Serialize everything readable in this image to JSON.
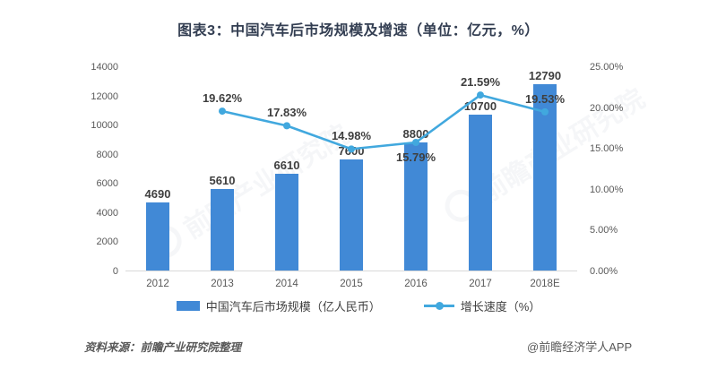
{
  "title": "图表3：中国汽车后市场规模及增速（单位：亿元，%）",
  "watermark_text": "前瞻产业研究院",
  "footer": {
    "source": "资料来源：前瞻产业研究院整理",
    "credit": "@前瞻经济学人APP"
  },
  "colors": {
    "bar": "#4189d6",
    "line": "#41a8de",
    "title_text": "#333e52",
    "axis_text": "#595959",
    "data_label_text": "#3f3f3f",
    "axis_line": "#d9d9d9"
  },
  "chart_data": {
    "type": "bar",
    "subtype": "bar+line combo",
    "title": "图表3：中国汽车后市场规模及增速（单位：亿元，%）",
    "categories": [
      "2012",
      "2013",
      "2014",
      "2015",
      "2016",
      "2017",
      "2018E"
    ],
    "series": [
      {
        "name": "中国汽车后市场规模（亿人民币）",
        "type": "bar",
        "axis": "left",
        "values": [
          4690,
          5610,
          6610,
          7600,
          8800,
          10700,
          12790
        ],
        "labels": [
          "4690",
          "5610",
          "6610",
          "7600",
          "8800",
          "10700",
          "12790"
        ]
      },
      {
        "name": "增长速度（%）",
        "type": "line",
        "axis": "right",
        "values": [
          null,
          19.62,
          17.83,
          14.98,
          15.79,
          21.59,
          19.53
        ],
        "labels": [
          "",
          "19.62%",
          "17.83%",
          "14.98%",
          "15.79%",
          "21.59%",
          "19.53%"
        ],
        "label_pos": [
          "",
          "above",
          "above",
          "above",
          "below",
          "above",
          "above"
        ]
      }
    ],
    "left_axis": {
      "min": 0,
      "max": 14000,
      "step": 2000,
      "ticks": [
        "0",
        "2000",
        "4000",
        "6000",
        "8000",
        "10000",
        "12000",
        "14000"
      ]
    },
    "right_axis": {
      "min": 0,
      "max": 25,
      "step": 5,
      "ticks": [
        "0.00%",
        "5.00%",
        "10.00%",
        "15.00%",
        "20.00%",
        "25.00%"
      ]
    },
    "grid": false,
    "legend_position": "bottom",
    "legend": [
      {
        "label": "中国汽车后市场规模（亿人民币）",
        "swatch": "bar"
      },
      {
        "label": "增长速度（%）",
        "swatch": "line"
      }
    ]
  }
}
